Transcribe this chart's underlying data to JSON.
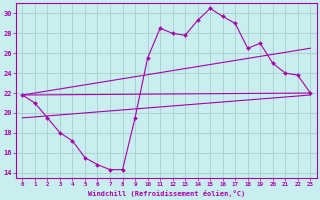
{
  "xlabel": "Windchill (Refroidissement éolien,°C)",
  "bg_color": "#c8eef0",
  "grid_color": "#aacccc",
  "line_color": "#aa00aa",
  "x_ticks": [
    0,
    1,
    2,
    3,
    4,
    5,
    6,
    7,
    8,
    9,
    10,
    11,
    12,
    13,
    14,
    15,
    16,
    17,
    18,
    19,
    20,
    21,
    22,
    23
  ],
  "ylim": [
    13.5,
    31.0
  ],
  "yticks": [
    14,
    16,
    18,
    20,
    22,
    24,
    26,
    28,
    30
  ],
  "series1": [
    21.8,
    21.0,
    19.5,
    18.0,
    17.2,
    15.5,
    14.8,
    14.3,
    14.3,
    19.5,
    25.5,
    28.5,
    28.0,
    27.8,
    29.3,
    30.5,
    29.7,
    29.0,
    26.5,
    27.0,
    25.0,
    24.0,
    23.8,
    22.0
  ],
  "line1_x": [
    0,
    23
  ],
  "line1_y": [
    21.8,
    22.0
  ],
  "line2_x": [
    0,
    23
  ],
  "line2_y": [
    21.8,
    26.5
  ],
  "line3_x": [
    0,
    23
  ],
  "line3_y": [
    19.5,
    21.8
  ]
}
